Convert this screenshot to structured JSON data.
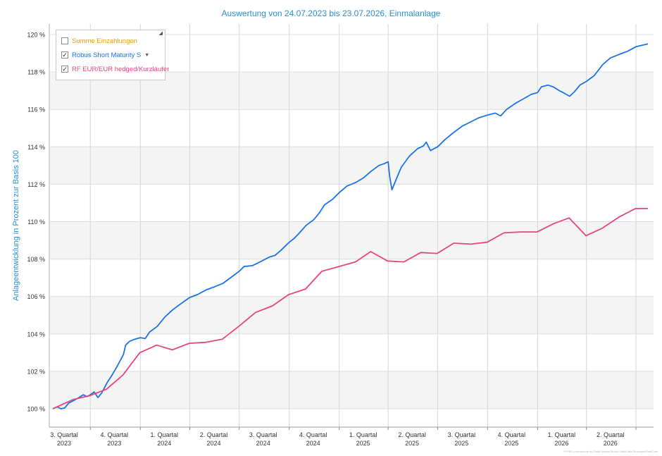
{
  "chart_data": {
    "type": "line",
    "title": "Auswertung von 24.07.2023 bis 23.07.2026, Einmalanlage",
    "ylabel": "Anlageentwicklung  in Prozent zur Basis 100",
    "ylim": [
      99.0,
      120.6
    ],
    "y_ticks": [
      "100 %",
      "102 %",
      "104 %",
      "106 %",
      "108 %",
      "110 %",
      "112 %",
      "114 %",
      "116 %",
      "118 %",
      "120 %"
    ],
    "y_tick_values": [
      100,
      102,
      104,
      106,
      108,
      110,
      112,
      114,
      116,
      118,
      120
    ],
    "x_ticks": [
      {
        "q": "3. Quartal",
        "y": "2023"
      },
      {
        "q": "4. Quartal",
        "y": "2023"
      },
      {
        "q": "1. Quartal",
        "y": "2024"
      },
      {
        "q": "2. Quartal",
        "y": "2024"
      },
      {
        "q": "3. Quartal",
        "y": "2024"
      },
      {
        "q": "4. Quartal",
        "y": "2024"
      },
      {
        "q": "1. Quartal",
        "y": "2025"
      },
      {
        "q": "2. Quartal",
        "y": "2025"
      },
      {
        "q": "3. Quartal",
        "y": "2025"
      },
      {
        "q": "4. Quartal",
        "y": "2025"
      },
      {
        "q": "1. Quartal",
        "y": "2026"
      },
      {
        "q": "2. Quartal",
        "y": "2026"
      }
    ],
    "x_tick_dates": [
      "2023-07-24",
      "2023-10-01",
      "2024-01-01",
      "2024-04-01",
      "2024-07-01",
      "2024-10-01",
      "2025-01-01",
      "2025-04-01",
      "2025-07-01",
      "2025-10-01",
      "2026-01-01",
      "2026-04-01"
    ],
    "quarter_gridlines": [
      "2023-10-01",
      "2024-01-01",
      "2024-04-01",
      "2024-07-01",
      "2024-10-01",
      "2025-01-01",
      "2025-04-01",
      "2025-07-01",
      "2025-10-01",
      "2026-01-01",
      "2026-04-01",
      "2026-07-01"
    ],
    "xlim": [
      "2023-07-24",
      "2026-07-23"
    ],
    "grid": true,
    "legend_placement": "top-left",
    "legend": [
      {
        "label": "Summe Einzahlungen",
        "checked": false,
        "color": "#f0960f"
      },
      {
        "label": "Robus Short Maturity S",
        "checked": true,
        "color": "#1a73e8",
        "dropdown": true
      },
      {
        "label": "RF EUR/EUR hedged/Kurzläufer",
        "checked": true,
        "color": "#e8457a"
      }
    ],
    "series": [
      {
        "name": "Robus Short Maturity S",
        "color": "#1a73e8",
        "points": [
          [
            "2023-07-24",
            100.0
          ],
          [
            "2023-08-01",
            100.1
          ],
          [
            "2023-08-08",
            100.0
          ],
          [
            "2023-08-15",
            100.05
          ],
          [
            "2023-08-22",
            100.3
          ],
          [
            "2023-09-01",
            100.45
          ],
          [
            "2023-09-10",
            100.6
          ],
          [
            "2023-09-18",
            100.75
          ],
          [
            "2023-09-25",
            100.65
          ],
          [
            "2023-10-01",
            100.75
          ],
          [
            "2023-10-08",
            100.9
          ],
          [
            "2023-10-15",
            100.6
          ],
          [
            "2023-10-22",
            100.85
          ],
          [
            "2023-11-01",
            101.4
          ],
          [
            "2023-11-10",
            101.8
          ],
          [
            "2023-11-20",
            102.3
          ],
          [
            "2023-12-01",
            102.9
          ],
          [
            "2023-12-05",
            103.4
          ],
          [
            "2023-12-12",
            103.6
          ],
          [
            "2023-12-20",
            103.7
          ],
          [
            "2024-01-01",
            103.8
          ],
          [
            "2024-01-10",
            103.75
          ],
          [
            "2024-01-18",
            104.1
          ],
          [
            "2024-02-01",
            104.4
          ],
          [
            "2024-02-15",
            104.9
          ],
          [
            "2024-03-01",
            105.3
          ],
          [
            "2024-03-15",
            105.6
          ],
          [
            "2024-04-01",
            105.95
          ],
          [
            "2024-04-15",
            106.1
          ],
          [
            "2024-05-01",
            106.35
          ],
          [
            "2024-05-15",
            106.5
          ],
          [
            "2024-06-01",
            106.7
          ],
          [
            "2024-06-15",
            107.0
          ],
          [
            "2024-07-01",
            107.35
          ],
          [
            "2024-07-10",
            107.6
          ],
          [
            "2024-07-25",
            107.65
          ],
          [
            "2024-08-05",
            107.8
          ],
          [
            "2024-08-15",
            107.95
          ],
          [
            "2024-08-25",
            108.1
          ],
          [
            "2024-09-05",
            108.2
          ],
          [
            "2024-09-15",
            108.45
          ],
          [
            "2024-10-01",
            108.9
          ],
          [
            "2024-10-10",
            109.1
          ],
          [
            "2024-10-20",
            109.4
          ],
          [
            "2024-11-01",
            109.8
          ],
          [
            "2024-11-15",
            110.1
          ],
          [
            "2024-11-25",
            110.45
          ],
          [
            "2024-12-05",
            110.9
          ],
          [
            "2024-12-20",
            111.2
          ],
          [
            "2025-01-01",
            111.55
          ],
          [
            "2025-01-15",
            111.9
          ],
          [
            "2025-02-01",
            112.1
          ],
          [
            "2025-02-15",
            112.35
          ],
          [
            "2025-03-01",
            112.7
          ],
          [
            "2025-03-15",
            113.0
          ],
          [
            "2025-03-25",
            113.1
          ],
          [
            "2025-04-01",
            113.2
          ],
          [
            "2025-04-04",
            112.4
          ],
          [
            "2025-04-08",
            111.7
          ],
          [
            "2025-04-15",
            112.2
          ],
          [
            "2025-04-25",
            112.9
          ],
          [
            "2025-05-10",
            113.5
          ],
          [
            "2025-05-25",
            113.9
          ],
          [
            "2025-06-05",
            114.05
          ],
          [
            "2025-06-10",
            114.25
          ],
          [
            "2025-06-18",
            113.8
          ],
          [
            "2025-07-01",
            114.0
          ],
          [
            "2025-07-15",
            114.4
          ],
          [
            "2025-08-01",
            114.8
          ],
          [
            "2025-08-15",
            115.1
          ],
          [
            "2025-09-01",
            115.35
          ],
          [
            "2025-09-15",
            115.55
          ],
          [
            "2025-10-01",
            115.7
          ],
          [
            "2025-10-15",
            115.8
          ],
          [
            "2025-10-25",
            115.65
          ],
          [
            "2025-11-05",
            116.0
          ],
          [
            "2025-11-20",
            116.3
          ],
          [
            "2025-12-05",
            116.55
          ],
          [
            "2025-12-20",
            116.8
          ],
          [
            "2026-01-01",
            116.9
          ],
          [
            "2026-01-08",
            117.2
          ],
          [
            "2026-01-20",
            117.3
          ],
          [
            "2026-01-30",
            117.2
          ],
          [
            "2026-02-10",
            117.0
          ],
          [
            "2026-02-20",
            116.85
          ],
          [
            "2026-03-01",
            116.7
          ],
          [
            "2026-03-10",
            116.95
          ],
          [
            "2026-03-20",
            117.3
          ],
          [
            "2026-04-01",
            117.5
          ],
          [
            "2026-04-15",
            117.8
          ],
          [
            "2026-05-01",
            118.4
          ],
          [
            "2026-05-15",
            118.75
          ],
          [
            "2026-06-01",
            118.95
          ],
          [
            "2026-06-15",
            119.1
          ],
          [
            "2026-07-01",
            119.35
          ],
          [
            "2026-07-23",
            119.5
          ]
        ]
      },
      {
        "name": "RF EUR/EUR hedged/Kurzläufer",
        "color": "#e8457a",
        "points": [
          [
            "2023-07-24",
            100.0
          ],
          [
            "2023-08-31",
            100.5
          ],
          [
            "2023-09-30",
            100.7
          ],
          [
            "2023-10-31",
            101.05
          ],
          [
            "2023-11-30",
            101.8
          ],
          [
            "2023-12-31",
            103.0
          ],
          [
            "2024-01-31",
            103.4
          ],
          [
            "2024-02-29",
            103.15
          ],
          [
            "2024-03-31",
            103.5
          ],
          [
            "2024-04-30",
            103.55
          ],
          [
            "2024-05-31",
            103.72
          ],
          [
            "2024-06-30",
            104.4
          ],
          [
            "2024-07-31",
            105.15
          ],
          [
            "2024-08-31",
            105.5
          ],
          [
            "2024-09-30",
            106.1
          ],
          [
            "2024-10-31",
            106.4
          ],
          [
            "2024-11-30",
            107.35
          ],
          [
            "2024-12-31",
            107.6
          ],
          [
            "2025-01-31",
            107.85
          ],
          [
            "2025-02-28",
            108.4
          ],
          [
            "2025-03-31",
            107.9
          ],
          [
            "2025-04-30",
            107.85
          ],
          [
            "2025-05-31",
            108.35
          ],
          [
            "2025-06-30",
            108.3
          ],
          [
            "2025-07-31",
            108.85
          ],
          [
            "2025-08-31",
            108.8
          ],
          [
            "2025-09-30",
            108.9
          ],
          [
            "2025-10-31",
            109.4
          ],
          [
            "2025-11-30",
            109.45
          ],
          [
            "2025-12-31",
            109.45
          ],
          [
            "2026-01-31",
            109.9
          ],
          [
            "2026-02-28",
            110.2
          ],
          [
            "2026-03-31",
            109.25
          ],
          [
            "2026-04-30",
            109.65
          ],
          [
            "2026-05-31",
            110.25
          ],
          [
            "2026-06-30",
            110.7
          ],
          [
            "2026-07-23",
            110.7
          ]
        ]
      }
    ],
    "footer": "FFVBS professional by Elsoft AdvisorStudio StaticData DeveloperDataCore"
  }
}
